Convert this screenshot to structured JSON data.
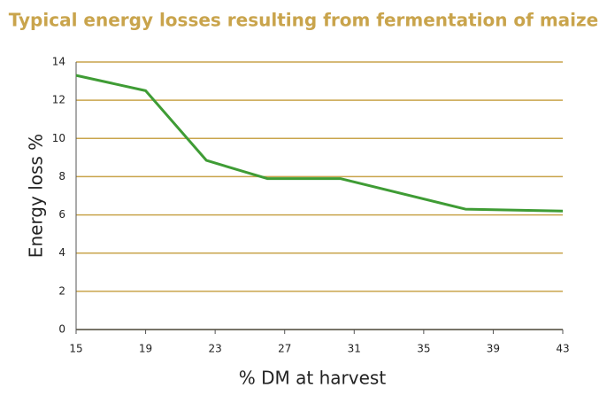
{
  "chart_data": {
    "type": "line",
    "title": "Typical energy losses resulting from fermentation of maize",
    "xlabel": "% DM at harvest",
    "ylabel": "Energy loss %",
    "x": [
      15,
      19,
      22.5,
      26,
      30.2,
      37.4,
      43
    ],
    "series": [
      {
        "name": "Energy loss",
        "color": "#3f9c35",
        "values": [
          13.3,
          12.5,
          8.85,
          7.9,
          7.9,
          6.3,
          6.2
        ]
      }
    ],
    "xlim": [
      15,
      43
    ],
    "xticks": [
      15,
      19,
      23,
      27,
      31,
      35,
      39,
      43
    ],
    "ylim": [
      0,
      14
    ],
    "yticks": [
      0,
      2,
      4,
      6,
      8,
      10,
      12,
      14
    ],
    "grid": true,
    "grid_color": "#c9a44c"
  }
}
